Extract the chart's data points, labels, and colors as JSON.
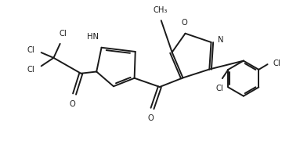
{
  "bg_color": "#ffffff",
  "line_color": "#1a1a1a",
  "lw": 1.4,
  "fs": 7.2,
  "xlim": [
    0,
    10
  ],
  "ylim": [
    0,
    5
  ]
}
